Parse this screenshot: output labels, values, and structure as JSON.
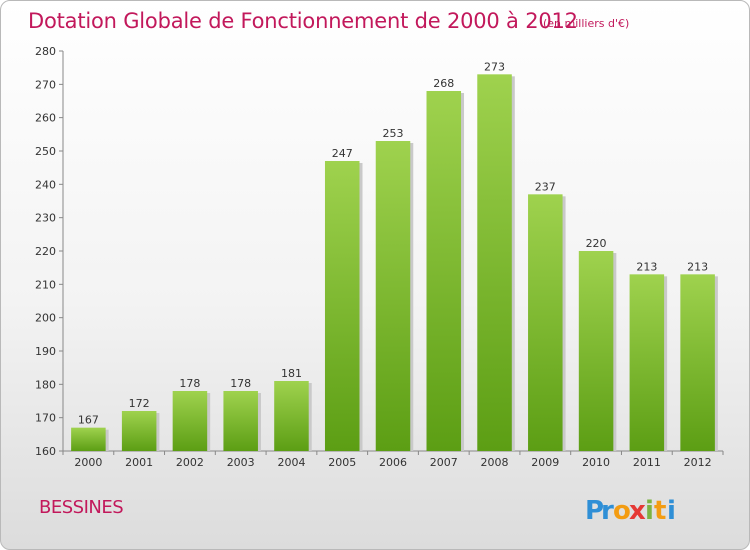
{
  "chart_data": {
    "type": "bar",
    "title": "Dotation Globale de Fonctionnement de 2000 à 2012",
    "subtitle": "(en milliers d'€)",
    "categories": [
      "2000",
      "2001",
      "2002",
      "2003",
      "2004",
      "2005",
      "2006",
      "2007",
      "2008",
      "2009",
      "2010",
      "2011",
      "2012"
    ],
    "values": [
      167,
      172,
      178,
      178,
      181,
      247,
      253,
      268,
      273,
      237,
      220,
      213,
      213
    ],
    "ylim": [
      160,
      280
    ],
    "yticks": [
      160,
      170,
      180,
      190,
      200,
      210,
      220,
      230,
      240,
      250,
      260,
      270,
      280
    ],
    "grid": false,
    "bar_color_top": "#9fd24e",
    "bar_color_bottom": "#5c9e14"
  },
  "commune": "BESSINES",
  "logo": {
    "letters": [
      "P",
      "r",
      "o",
      "x",
      "i",
      "t",
      "i"
    ],
    "colors": [
      "#2f8fd6",
      "#2f8fd6",
      "#f39c12",
      "#e53935",
      "#7cb342",
      "#f39c12",
      "#2f8fd6"
    ]
  }
}
